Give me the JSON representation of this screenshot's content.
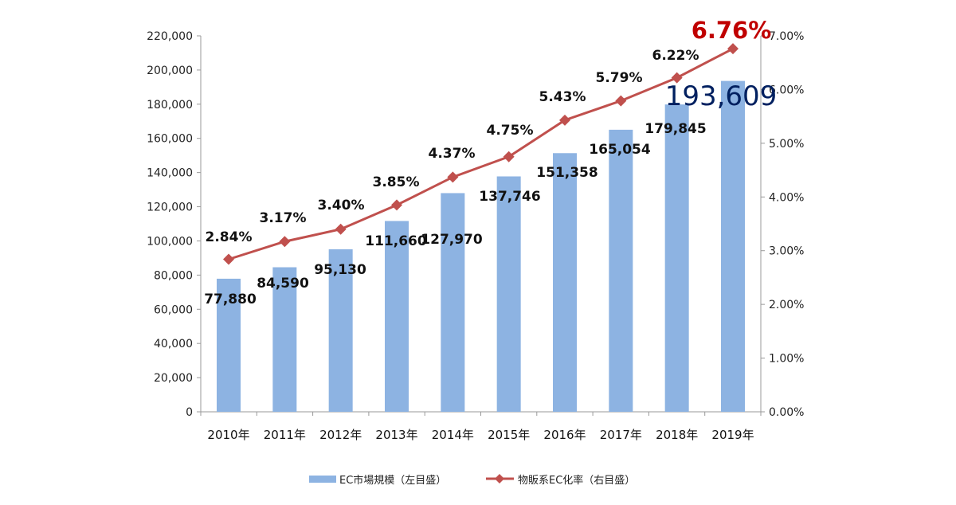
{
  "chart_data": {
    "type": "bar+line",
    "categories": [
      "2010年",
      "2011年",
      "2012年",
      "2013年",
      "2014年",
      "2015年",
      "2016年",
      "2017年",
      "2018年",
      "2019年"
    ],
    "series": [
      {
        "name": "EC市場規模（左目盛）",
        "type": "bar",
        "axis": "left",
        "color": "#8db3e2",
        "values": [
          77880,
          84590,
          95130,
          111660,
          127970,
          137746,
          151358,
          165054,
          179845,
          193609
        ],
        "labels": [
          "77,880",
          "84,590",
          "95,130",
          "111,660",
          "127,970",
          "137,746",
          "151,358",
          "165,054",
          "179,845",
          "193,609"
        ]
      },
      {
        "name": "物販系EC化率（右目盛）",
        "type": "line",
        "axis": "right",
        "color": "#c0504d",
        "values": [
          2.84,
          3.17,
          3.4,
          3.85,
          4.37,
          4.75,
          5.43,
          5.79,
          6.22,
          6.76
        ],
        "labels": [
          "2.84%",
          "3.17%",
          "3.40%",
          "3.85%",
          "4.37%",
          "4.75%",
          "5.43%",
          "5.79%",
          "6.22%",
          "6.76%"
        ]
      }
    ],
    "y_left": {
      "range": [
        0,
        220000
      ],
      "ticks": [
        "0",
        "20,000",
        "40,000",
        "60,000",
        "80,000",
        "100,000",
        "120,000",
        "140,000",
        "160,000",
        "180,000",
        "200,000",
        "220,000"
      ]
    },
    "y_right": {
      "range": [
        0,
        7
      ],
      "ticks": [
        "0.00%",
        "1.00%",
        "2.00%",
        "3.00%",
        "4.00%",
        "5.00%",
        "6.00%",
        "7.00%"
      ]
    },
    "highlight_colors": {
      "last_bar_label": "#002060",
      "last_line_label": "#c00000"
    },
    "grid": false,
    "legend_placement": "bottom"
  }
}
